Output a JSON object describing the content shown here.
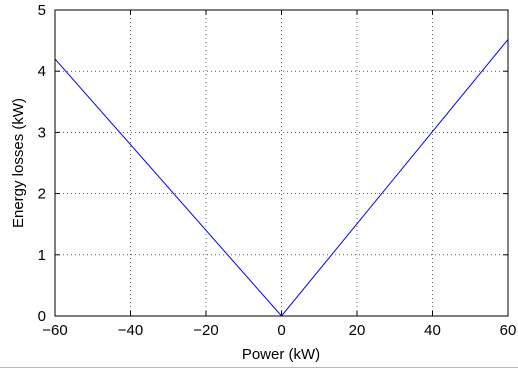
{
  "chart_data": {
    "type": "line",
    "title": "",
    "xlabel": "Power (kW)",
    "ylabel": "Energy losses (kW)",
    "xlim": [
      -60,
      60
    ],
    "ylim": [
      0,
      5
    ],
    "xticks": [
      -60,
      -40,
      -20,
      0,
      20,
      40,
      60
    ],
    "yticks": [
      0,
      1,
      2,
      3,
      4,
      5
    ],
    "xtick_labels": [
      "−60",
      "−40",
      "−20",
      "0",
      "20",
      "40",
      "60"
    ],
    "ytick_labels": [
      "0",
      "1",
      "2",
      "3",
      "4",
      "5"
    ],
    "grid": true,
    "legend": false,
    "series": [
      {
        "color": "#0000ff",
        "x": [
          -60,
          0,
          60
        ],
        "y": [
          4.2,
          0,
          4.52
        ]
      }
    ]
  }
}
